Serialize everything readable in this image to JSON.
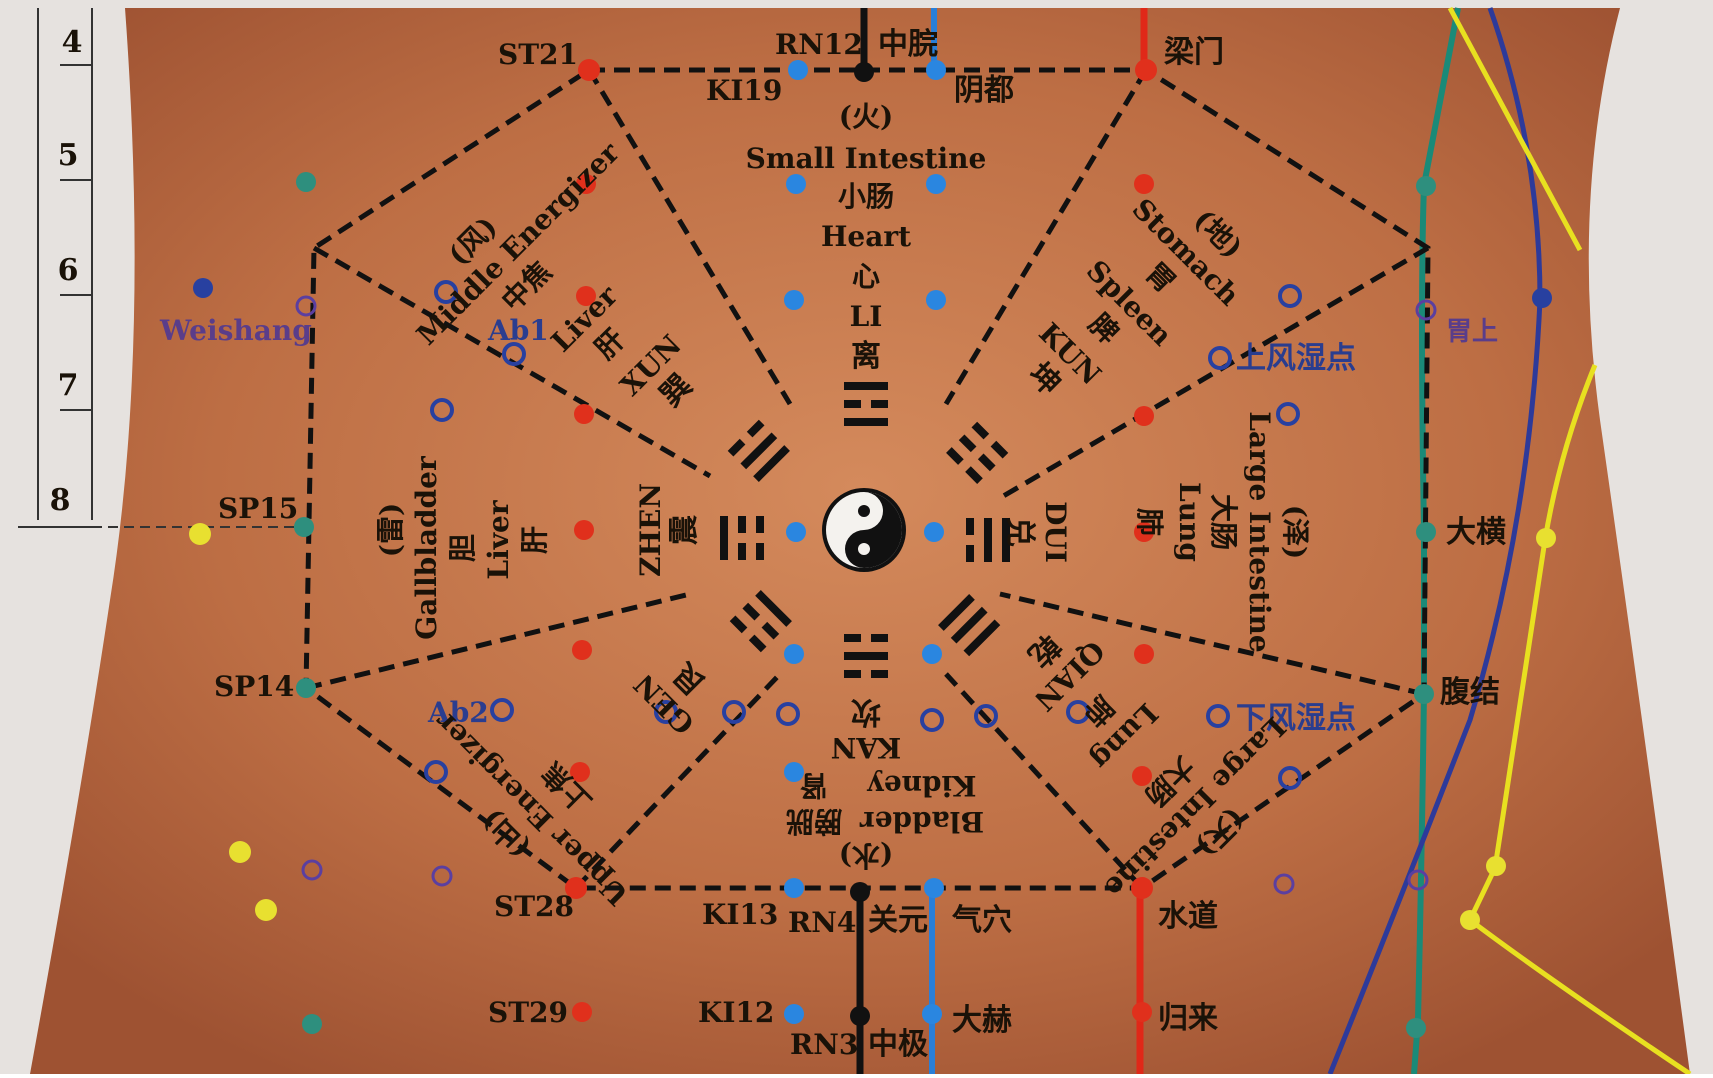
{
  "ruler": {
    "ticks": [
      "4",
      "5",
      "6",
      "7",
      "8"
    ]
  },
  "center": {
    "symbol_name": "yin-yang-icon"
  },
  "trigrams": [
    {
      "id": "li",
      "pinyin": "LI",
      "hanzi": "离",
      "element": "(火)",
      "organs_en": [
        "Small Intestine",
        "Heart"
      ],
      "organs_zh": [
        "小肠",
        "心"
      ]
    },
    {
      "id": "kun",
      "pinyin": "KUN",
      "hanzi": "坤",
      "element": "(地)",
      "organs_en": [
        "Stomach",
        "Spleen"
      ],
      "organs_zh": [
        "胃",
        "脾"
      ]
    },
    {
      "id": "dui",
      "pinyin": "DUI",
      "hanzi": "兑",
      "element": "(泽)",
      "organs_en": [
        "Large Intestine",
        "Lung"
      ],
      "organs_zh": [
        "大肠",
        "肺"
      ]
    },
    {
      "id": "qian",
      "pinyin": "QIAN",
      "hanzi": "乾",
      "element": "(天)",
      "organs_en": [
        "Large Intestine",
        "Lung"
      ],
      "organs_zh": [
        "大肠",
        "肺"
      ]
    },
    {
      "id": "kan",
      "pinyin": "KAN",
      "hanzi": "坎",
      "element": "(水)",
      "organs_en": [
        "Bladder",
        "Kidney"
      ],
      "organs_zh": [
        "膀胱",
        "肾"
      ]
    },
    {
      "id": "gen",
      "pinyin": "GEN",
      "hanzi": "艮",
      "element": "(山)",
      "organs_en": [
        "Upper Energizer"
      ],
      "organs_zh": [
        "上焦"
      ]
    },
    {
      "id": "zhen",
      "pinyin": "ZHEN",
      "hanzi": "震",
      "element": "(雷)",
      "organs_en": [
        "Gallbladder",
        "Liver"
      ],
      "organs_zh": [
        "胆",
        "肝"
      ]
    },
    {
      "id": "xun",
      "pinyin": "XUN",
      "hanzi": "巽",
      "element": "(风)",
      "organs_en": [
        "Middle Energizer",
        "Liver"
      ],
      "organs_zh": [
        "中焦",
        "肝"
      ]
    }
  ],
  "points": {
    "st21": "ST21",
    "rn12": "RN12",
    "zhongwan": "中脘",
    "ki19": "KI19",
    "yindu": "阴都",
    "liangmen": "梁门",
    "sp15": "SP15",
    "sp14": "SP14",
    "weishang": "Weishang",
    "weishang_zh": "胃上",
    "ab1": "Ab1",
    "ab2": "Ab2",
    "upper_wind_damp": "上风湿点",
    "lower_wind_damp": "下风湿点",
    "daheng": "大横",
    "fujie": "腹结",
    "st28": "ST28",
    "ki13": "KI13",
    "rn4": "RN4",
    "guanyuan": "关元",
    "qixue": "气穴",
    "shuidao": "水道",
    "st29": "ST29",
    "ki12": "KI12",
    "rn3": "RN3",
    "zhongji": "中极",
    "dahe": "大赫",
    "guilai": "归来"
  },
  "colors": {
    "skin": "#b8673f",
    "red_meridian": "#e02818",
    "blue_meridian": "#2a7fd8",
    "black_meridian": "#111111",
    "teal_meridian": "#1a8a78",
    "navy_meridian": "#2d3a9a",
    "yellow_meridian": "#e8e020",
    "point_red": "#e0301c",
    "point_blue": "#2a86e0",
    "point_teal": "#2e8f7e",
    "point_purple": "#5b3fa0",
    "point_navy": "#2840a0",
    "point_yellow": "#e8e030"
  }
}
